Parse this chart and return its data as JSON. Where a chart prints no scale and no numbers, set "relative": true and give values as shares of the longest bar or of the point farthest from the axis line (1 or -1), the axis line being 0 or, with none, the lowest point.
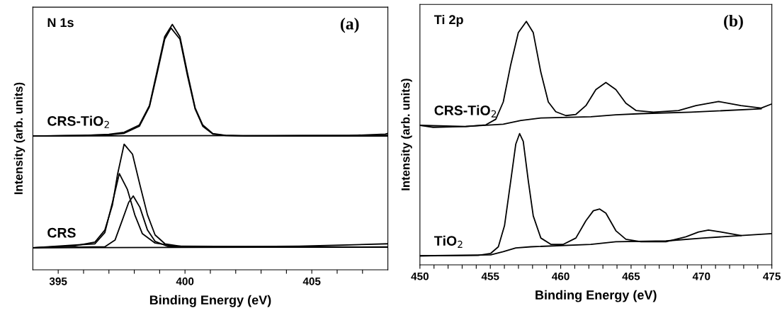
{
  "chart_data": [
    {
      "type": "line",
      "relative": true,
      "xlabel": "Binding Energy (eV)",
      "ylabel": "Intensity (arb. units)",
      "xlim": [
        394,
        408
      ],
      "xticks": [
        {
          "value": 395,
          "label": "395"
        },
        {
          "value": 396,
          "label": null
        },
        {
          "value": 397,
          "label": null
        },
        {
          "value": 398,
          "label": null
        },
        {
          "value": 399,
          "label": null
        },
        {
          "value": 400,
          "label": "400"
        },
        {
          "value": 401,
          "label": null
        },
        {
          "value": 402,
          "label": null
        },
        {
          "value": 403,
          "label": null
        },
        {
          "value": 404,
          "label": null
        },
        {
          "value": 405,
          "label": "405"
        },
        {
          "value": 406,
          "label": null
        },
        {
          "value": 407,
          "label": null
        }
      ],
      "tick_labels": "x",
      "grid": false,
      "legend": false,
      "marker": "none",
      "line_style": "solid",
      "annotations": [
        "N 1s",
        "(a)"
      ],
      "series": [
        {
          "name": "CRS-TiO$_{2}$",
          "color": "#000000",
          "x": [
            394.0,
            396.0,
            397.0,
            397.6,
            398.2,
            398.6,
            398.9,
            399.2,
            399.5,
            399.8,
            400.1,
            400.4,
            400.7,
            401.1,
            401.6,
            402.5,
            404.5,
            406.5,
            407.9,
            408.0
          ],
          "values": [
            0.545,
            0.547,
            0.552,
            0.56,
            0.59,
            0.67,
            0.81,
            0.95,
            1.0,
            0.95,
            0.8,
            0.66,
            0.59,
            0.555,
            0.548,
            0.545,
            0.546,
            0.547,
            0.553,
            0.556
          ]
        },
        {
          "color": "#000000",
          "x": [
            394.0,
            397.0,
            397.6,
            398.2,
            398.6,
            398.9,
            399.2,
            399.45,
            399.8,
            400.1,
            400.4,
            400.7,
            401.1,
            401.6,
            402.5,
            408.0
          ],
          "values": [
            0.545,
            0.55,
            0.556,
            0.585,
            0.665,
            0.8,
            0.94,
            0.985,
            0.94,
            0.79,
            0.655,
            0.585,
            0.553,
            0.547,
            0.545,
            0.545
          ]
        },
        {
          "color": "#000000",
          "x": [
            394.0,
            408.0
          ],
          "values": [
            0.545,
            0.548
          ]
        },
        {
          "name": "CRS",
          "color": "#000000",
          "x": [
            394.0,
            395.66,
            396.45,
            396.84,
            397.14,
            397.34,
            397.6,
            397.93,
            398.22,
            398.52,
            398.82,
            399.21,
            399.8,
            401.58,
            404.5,
            408.0
          ],
          "values": [
            0.09,
            0.098,
            0.113,
            0.162,
            0.265,
            0.389,
            0.512,
            0.471,
            0.347,
            0.224,
            0.142,
            0.106,
            0.096,
            0.094,
            0.096,
            0.106
          ]
        },
        {
          "color": "#000000",
          "x": [
            394.0,
            396.45,
            396.84,
            397.14,
            397.41,
            397.73,
            398.02,
            398.32,
            398.82,
            399.6,
            408.0
          ],
          "values": [
            0.09,
            0.106,
            0.152,
            0.275,
            0.392,
            0.327,
            0.224,
            0.147,
            0.109,
            0.096,
            0.092
          ]
        },
        {
          "color": "#000000",
          "x": [
            394.0,
            396.84,
            397.24,
            397.53,
            397.78,
            397.96,
            398.22,
            398.52,
            398.82,
            399.31,
            400.1,
            408.0
          ],
          "values": [
            0.09,
            0.094,
            0.121,
            0.203,
            0.275,
            0.301,
            0.255,
            0.162,
            0.116,
            0.096,
            0.092,
            0.092
          ]
        },
        {
          "color": "#000000",
          "x": [
            394.0,
            408.0
          ],
          "values": [
            0.09,
            0.093
          ]
        }
      ]
    },
    {
      "type": "line",
      "relative": true,
      "xlabel": "Binding Energy (eV)",
      "ylabel": "Intensity (arb. units)",
      "xlim": [
        450,
        475
      ],
      "xticks": [
        {
          "value": 450,
          "label": "450"
        },
        {
          "value": 451,
          "label": null
        },
        {
          "value": 452,
          "label": null
        },
        {
          "value": 453,
          "label": null
        },
        {
          "value": 454,
          "label": null
        },
        {
          "value": 455,
          "label": "455"
        },
        {
          "value": 456,
          "label": null
        },
        {
          "value": 457,
          "label": null
        },
        {
          "value": 458,
          "label": null
        },
        {
          "value": 459,
          "label": null
        },
        {
          "value": 460,
          "label": "460"
        },
        {
          "value": 461,
          "label": null
        },
        {
          "value": 462,
          "label": null
        },
        {
          "value": 463,
          "label": null
        },
        {
          "value": 464,
          "label": null
        },
        {
          "value": 465,
          "label": "465"
        },
        {
          "value": 466,
          "label": null
        },
        {
          "value": 467,
          "label": null
        },
        {
          "value": 468,
          "label": null
        },
        {
          "value": 469,
          "label": null
        },
        {
          "value": 470,
          "label": "470"
        },
        {
          "value": 471,
          "label": null
        },
        {
          "value": 472,
          "label": null
        },
        {
          "value": 473,
          "label": null
        },
        {
          "value": 474,
          "label": null
        },
        {
          "value": 475,
          "label": "475"
        }
      ],
      "tick_labels": "x",
      "grid": false,
      "legend": false,
      "marker": "none",
      "line_style": "solid",
      "annotations": [
        "Ti 2p",
        "(b)"
      ],
      "series": [
        {
          "name": "CRS-TiO$_{2}$",
          "color": "#000000",
          "x": [
            450.0,
            450.94,
            453.25,
            454.68,
            455.39,
            455.92,
            456.45,
            456.99,
            457.56,
            458.05,
            458.59,
            459.12,
            459.65,
            460.37,
            461.08,
            461.79,
            462.5,
            463.21,
            463.92,
            464.63,
            465.35,
            466.59,
            468.37,
            469.61,
            471.21,
            472.81,
            474.24,
            475.0
          ],
          "values": [
            0.573,
            0.565,
            0.568,
            0.575,
            0.598,
            0.669,
            0.822,
            0.954,
            1.0,
            0.954,
            0.791,
            0.669,
            0.629,
            0.613,
            0.618,
            0.654,
            0.72,
            0.749,
            0.72,
            0.664,
            0.634,
            0.627,
            0.634,
            0.654,
            0.671,
            0.654,
            0.644,
            0.661
          ]
        },
        {
          "color": "#000000",
          "x": [
            450.0,
            453.25,
            455.92,
            457.17,
            458.59,
            462.14,
            463.92,
            465.7,
            469.26,
            474.24
          ],
          "values": [
            0.573,
            0.568,
            0.578,
            0.593,
            0.603,
            0.608,
            0.616,
            0.621,
            0.627,
            0.641
          ]
        },
        {
          "name": "TiO$_{2}$",
          "color": "#000000",
          "x": [
            450.0,
            454.14,
            455.03,
            455.57,
            456.01,
            456.45,
            456.81,
            457.08,
            457.34,
            457.7,
            458.05,
            458.59,
            459.3,
            460.19,
            461.08,
            461.79,
            462.32,
            462.77,
            463.21,
            463.92,
            464.63,
            465.7,
            467.48,
            468.9,
            469.79,
            470.5,
            471.39,
            472.81,
            475.0
          ],
          "values": [
            0.037,
            0.039,
            0.047,
            0.074,
            0.161,
            0.344,
            0.496,
            0.539,
            0.507,
            0.344,
            0.201,
            0.11,
            0.084,
            0.084,
            0.11,
            0.181,
            0.222,
            0.229,
            0.212,
            0.14,
            0.105,
            0.095,
            0.095,
            0.115,
            0.135,
            0.143,
            0.135,
            0.12,
            0.128
          ]
        },
        {
          "color": "#000000",
          "x": [
            450.0,
            455.03,
            455.92,
            456.81,
            457.88,
            462.14,
            463.92,
            467.48,
            470.15,
            472.81
          ],
          "values": [
            0.037,
            0.041,
            0.054,
            0.069,
            0.074,
            0.084,
            0.095,
            0.098,
            0.11,
            0.12
          ]
        }
      ]
    }
  ]
}
